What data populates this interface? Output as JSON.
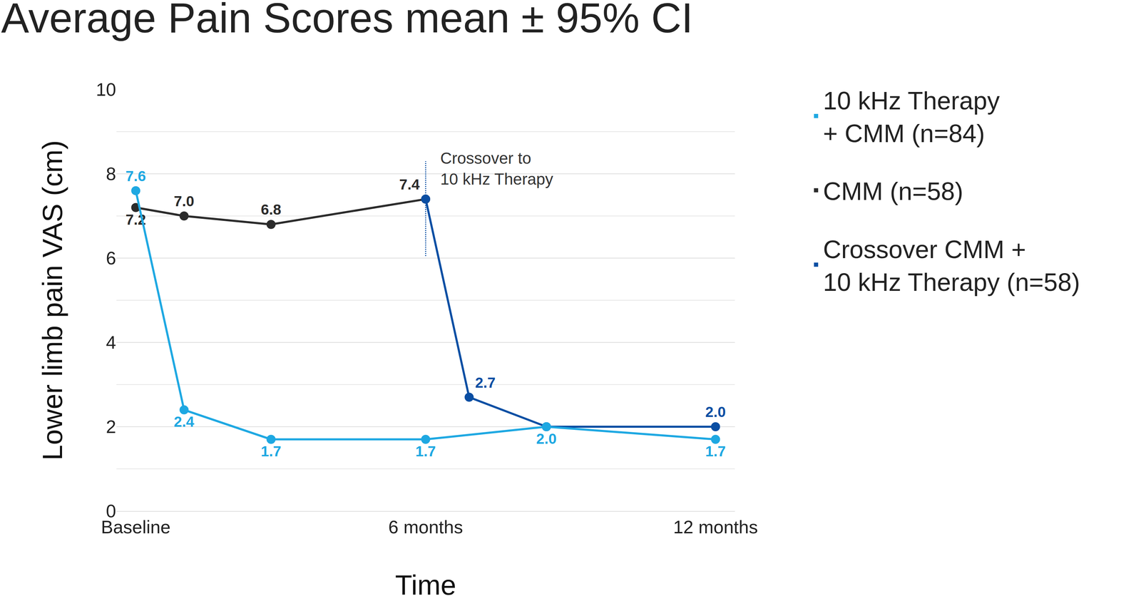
{
  "chart_data": {
    "type": "line",
    "title": "Average Pain Scores mean ± 95% CI",
    "x_label": "Time",
    "y_label": "Lower limb pain VAS (cm)",
    "xlim": [
      -0.4,
      12.4
    ],
    "xticks": [
      {
        "value": 0,
        "label": "Baseline"
      },
      {
        "value": 6,
        "label": "6 months"
      },
      {
        "value": 12,
        "label": "12 months"
      }
    ],
    "ylim": [
      0,
      10
    ],
    "yticks": [
      0,
      2,
      4,
      6,
      8,
      10
    ],
    "grid": true,
    "legend": "right",
    "data_labels": true,
    "marker": "circle",
    "line_style": "solid",
    "annotations": [
      {
        "text": "Crossover to\n10 kHz Therapy",
        "x": 6
      }
    ],
    "series": [
      {
        "name": "10 kHz Therapy\n+ CMM (n=84)",
        "color": "#1ea8e2",
        "x": [
          0,
          1,
          2.8,
          6,
          8.5,
          12
        ],
        "values": [
          7.6,
          2.4,
          1.7,
          1.7,
          2.0,
          1.7
        ],
        "value_labels": [
          "7.6",
          "2.4",
          "1.7",
          "1.7",
          "2.0",
          "1.7"
        ]
      },
      {
        "name": "CMM (n=58)",
        "color": "#2b2b2b",
        "x": [
          0,
          1,
          2.8,
          6
        ],
        "values": [
          7.2,
          7.0,
          6.8,
          7.4
        ],
        "value_labels": [
          "7.2",
          "7.0",
          "6.8",
          "7.4"
        ]
      },
      {
        "name": "Crossover CMM +\n10 kHz Therapy (n=58)",
        "color": "#0a4ea3",
        "x": [
          6,
          6.9,
          8.5,
          12
        ],
        "values": [
          7.4,
          2.7,
          2.0,
          2.0
        ],
        "value_labels": [
          null,
          "2.7",
          null,
          "2.0"
        ]
      }
    ]
  }
}
